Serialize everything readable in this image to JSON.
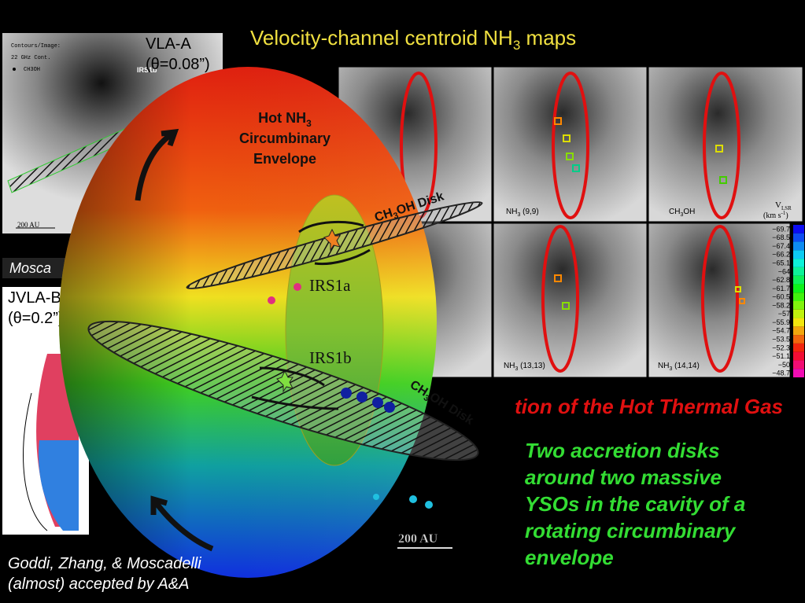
{
  "title": {
    "main": "Velocity-channel centroid NH",
    "sub": "3",
    "tail": " maps"
  },
  "vla_a": {
    "label": "VLA-A",
    "beam": "(θ=0.08”)"
  },
  "jvla_b": {
    "label": "JVLA-B",
    "beam": "(θ=0.2”)"
  },
  "left_panel": {
    "legend_title": "Contours/Image:",
    "legend_cont": "22 GHz Cont.",
    "legend_ch3oh": "CH3OH",
    "source": "IRS1b",
    "scale": "200 AU",
    "caption": "Mosca"
  },
  "panels": [
    {
      "label": "NH",
      "sub": "3",
      "tail": " (9,9)"
    },
    {
      "label": "CH",
      "sub": "3",
      "tail": "OH"
    },
    {
      "label": "NH",
      "sub": "3",
      "tail": " (13,13)"
    },
    {
      "label": "NH",
      "sub": "3",
      "tail": " (14,14)"
    }
  ],
  "velocity": {
    "label": "V",
    "sub": "LSR",
    "unit": "(km s",
    "unit_sup": "-1",
    "unit_close": ")",
    "ticks": [
      "−69.7",
      "−68.5",
      "−67.4",
      "−66.2",
      "−65.1",
      "−64",
      "−62.8",
      "−61.7",
      "−60.5",
      "−58.2",
      "−57",
      "−55.9",
      "−54.7",
      "−53.5",
      "−52.3",
      "−51.1",
      "−50",
      "−48.7"
    ]
  },
  "envelope": {
    "line1": "Hot NH",
    "sub": "3",
    "line2": "Circumbinary",
    "line3": "Envelope"
  },
  "disks": [
    {
      "text": "CH",
      "sub": "3",
      "tail": "OH Disk"
    },
    {
      "text": "CH",
      "sub": "3",
      "tail": "OH Disk"
    }
  ],
  "sources": [
    "IRS1a",
    "IRS1b"
  ],
  "scale": "200 AU",
  "heading": "tion of the Hot Thermal Gas",
  "summary": [
    "Two accretion disks",
    "around two massive",
    "YSOs in the cavity of a",
    "rotating circumbinary",
    "envelope"
  ],
  "citation": [
    "Goddi, Zhang, & Moscadelli",
    "(almost) accepted by A&A"
  ]
}
